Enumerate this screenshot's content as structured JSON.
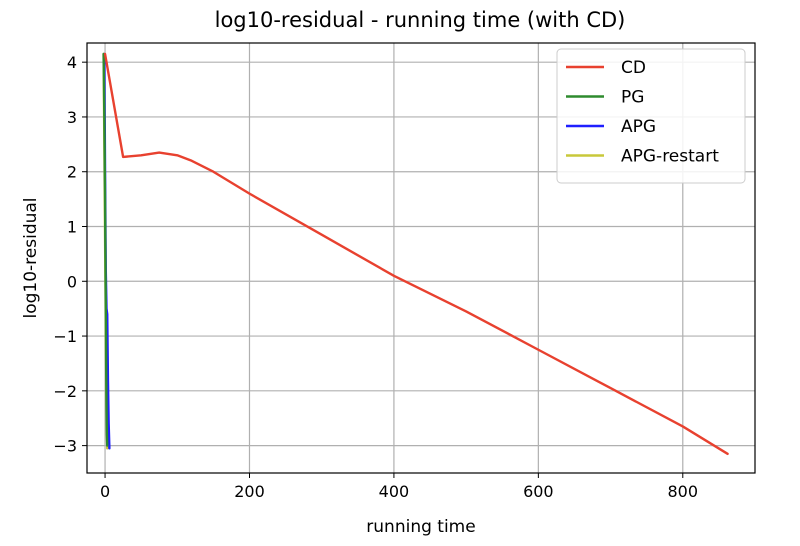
{
  "chart_data": {
    "type": "line",
    "title": "log10-residual - running time (with CD)",
    "xlabel": "running time",
    "ylabel": "log10-residual",
    "xlim": [
      -25,
      900
    ],
    "ylim": [
      -3.5,
      4.35
    ],
    "xticks": [
      0,
      200,
      400,
      600,
      800
    ],
    "xtick_labels": [
      "0",
      "200",
      "400",
      "600",
      "800"
    ],
    "yticks": [
      4,
      3,
      2,
      1,
      0,
      -1,
      -2,
      -3
    ],
    "ytick_labels": [
      "4",
      "3",
      "2",
      "1",
      "0",
      "−1",
      "−2",
      "−3"
    ],
    "grid": true,
    "legend_position": "top-right",
    "series": [
      {
        "name": "CD",
        "color": "#e8412f",
        "x": [
          0,
          25,
          50,
          75,
          100,
          120,
          150,
          200,
          300,
          400,
          500,
          600,
          700,
          800,
          862
        ],
        "y": [
          4.15,
          2.27,
          2.3,
          2.35,
          2.3,
          2.2,
          2.0,
          1.6,
          0.85,
          0.1,
          -0.55,
          -1.25,
          -1.95,
          -2.65,
          -3.15
        ]
      },
      {
        "name": "PG",
        "color": "#2e8b2e",
        "x": [
          -2,
          -1,
          0,
          0.5,
          1,
          1.5,
          2,
          2.5,
          3
        ],
        "y": [
          4.15,
          3.0,
          1.5,
          0.5,
          -0.5,
          -1.5,
          -2.3,
          -2.8,
          -3.0
        ]
      },
      {
        "name": "APG",
        "color": "#1f1fff",
        "x": [
          -1,
          0,
          1,
          2,
          3,
          4,
          5,
          6
        ],
        "y": [
          4.15,
          2.0,
          0.2,
          -0.5,
          -0.6,
          -1.8,
          -2.6,
          -3.05
        ]
      },
      {
        "name": "APG-restart",
        "color": "#c8c83a",
        "x": [
          -2,
          -1,
          0,
          1,
          2,
          3
        ],
        "y": [
          4.15,
          2.5,
          0.8,
          -0.8,
          -2.2,
          -3.05
        ]
      }
    ]
  }
}
